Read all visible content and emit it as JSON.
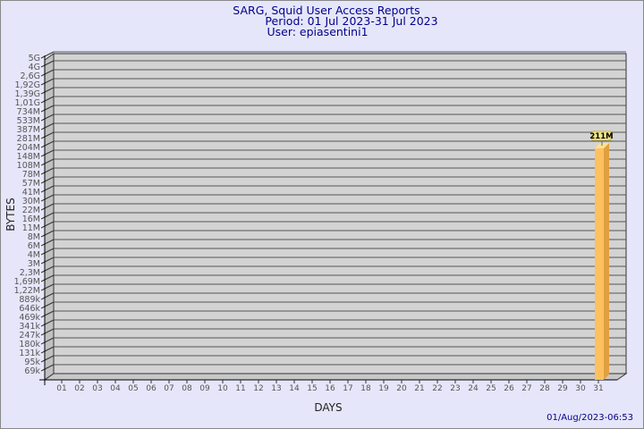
{
  "chart_data": {
    "type": "bar",
    "title": "SARG, Squid User Access Reports",
    "subtitle": [
      "Period: 01 Jul 2023-31 Jul 2023",
      "User: epiasentini1"
    ],
    "xlabel": "DAYS",
    "ylabel": "BYTES",
    "yscale": "log",
    "y_tick_labels": [
      "5G",
      "4G",
      "2,6G",
      "1,92G",
      "1,39G",
      "1,01G",
      "734M",
      "533M",
      "387M",
      "281M",
      "204M",
      "148M",
      "108M",
      "78M",
      "57M",
      "41M",
      "30M",
      "22M",
      "16M",
      "11M",
      "8M",
      "6M",
      "4M",
      "3M",
      "2,3M",
      "1,69M",
      "1,22M",
      "889k",
      "646k",
      "469k",
      "341k",
      "247k",
      "180k",
      "131k",
      "95k",
      "69k"
    ],
    "categories": [
      "01",
      "02",
      "03",
      "04",
      "05",
      "06",
      "07",
      "08",
      "09",
      "10",
      "11",
      "12",
      "13",
      "14",
      "15",
      "16",
      "17",
      "18",
      "19",
      "20",
      "21",
      "22",
      "23",
      "24",
      "25",
      "26",
      "27",
      "28",
      "29",
      "30",
      "31"
    ],
    "values": [
      0,
      0,
      0,
      0,
      0,
      0,
      0,
      0,
      0,
      0,
      0,
      0,
      0,
      0,
      0,
      0,
      0,
      0,
      0,
      0,
      0,
      0,
      0,
      0,
      0,
      0,
      0,
      0,
      0,
      0,
      211
    ],
    "value_unit": "M",
    "data_labels": {
      "31": "211M"
    },
    "grid": true,
    "colors": {
      "bar": "#ffc060",
      "bar_side": "#e0a040",
      "wall": "#d3d3d3",
      "background": "#e6e6fa",
      "title": "#00008b",
      "label_box": "#f0e68c"
    }
  },
  "footer": {
    "timestamp": "01/Aug/2023-06:53"
  }
}
